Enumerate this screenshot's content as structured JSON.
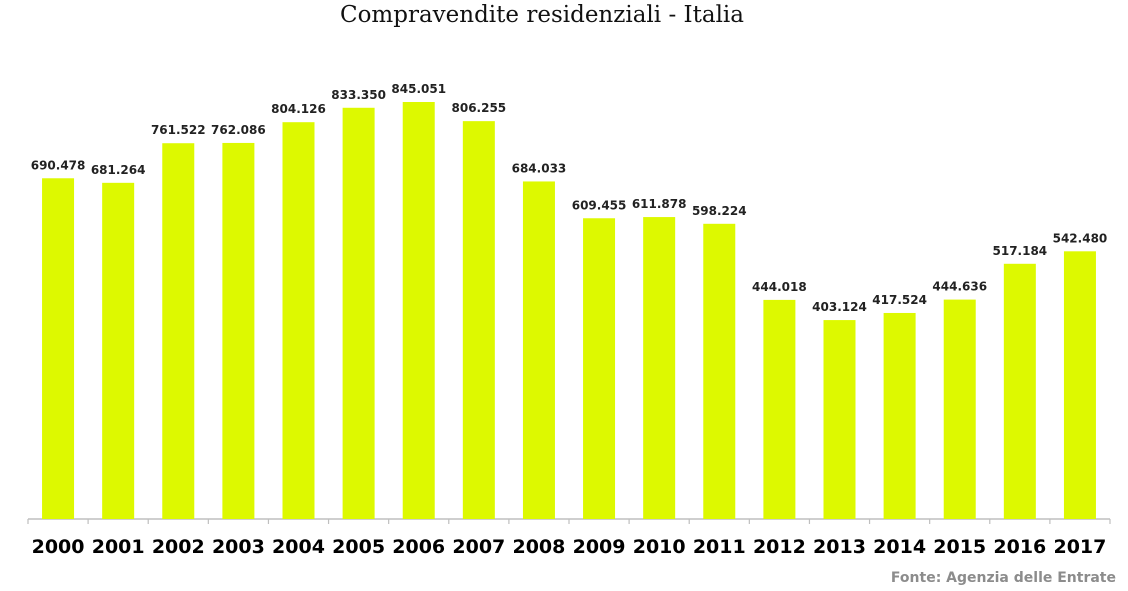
{
  "source": "Fonte: Agenzia delle Entrate",
  "colors": {
    "bar": "#DDF900",
    "axis": "#BFBFBF",
    "label": "#222222",
    "tick": "#000000"
  },
  "chart_data": {
    "type": "bar",
    "title": "Compravendite residenziali  - Italia",
    "xlabel": "",
    "ylabel": "",
    "grid": false,
    "legend": "none",
    "ylim": [
      0,
      900000
    ],
    "categories": [
      "2000",
      "2001",
      "2002",
      "2003",
      "2004",
      "2005",
      "2006",
      "2007",
      "2008",
      "2009",
      "2010",
      "2011",
      "2012",
      "2013",
      "2014",
      "2015",
      "2016",
      "2017"
    ],
    "values": [
      690478,
      681264,
      761522,
      762086,
      804126,
      833350,
      845051,
      806255,
      684033,
      609455,
      611878,
      598224,
      444018,
      403124,
      417524,
      444636,
      517184,
      542480
    ],
    "data_labels": [
      "690.478",
      "681.264",
      "761.522",
      "762.086",
      "804.126",
      "833.350",
      "845.051",
      "806.255",
      "684.033",
      "609.455",
      "611.878",
      "598.224",
      "444.018",
      "403.124",
      "417.524",
      "444.636",
      "517.184",
      "542.480"
    ]
  }
}
